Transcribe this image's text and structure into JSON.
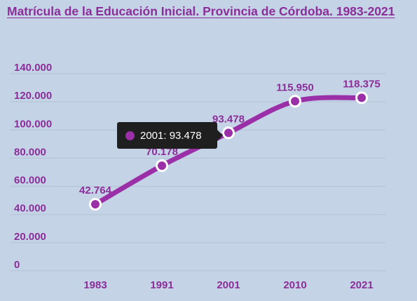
{
  "chart_data": {
    "type": "line",
    "title": "Matrícula de la Educación Inicial. Provincia de Córdoba. 1983-2021",
    "categories": [
      "1983",
      "1991",
      "2001",
      "2010",
      "2021"
    ],
    "values": [
      42764,
      70178,
      93478,
      115950,
      118375
    ],
    "value_labels": [
      "42.764",
      "70.178",
      "93.478",
      "115.950",
      "118.375"
    ],
    "y_ticks": [
      0,
      20000,
      40000,
      60000,
      80000,
      100000,
      120000,
      140000
    ],
    "y_tick_labels": [
      "0",
      "20.000",
      "40.000",
      "60.000",
      "80.000",
      "100.000",
      "120.000",
      "140.000"
    ],
    "ylim": [
      0,
      140000
    ],
    "grid": true,
    "legend": "none",
    "line_color": "#9b2fa8",
    "tooltip": {
      "text": "2001: 93.478",
      "dot_color": "#9b2fa8"
    }
  }
}
